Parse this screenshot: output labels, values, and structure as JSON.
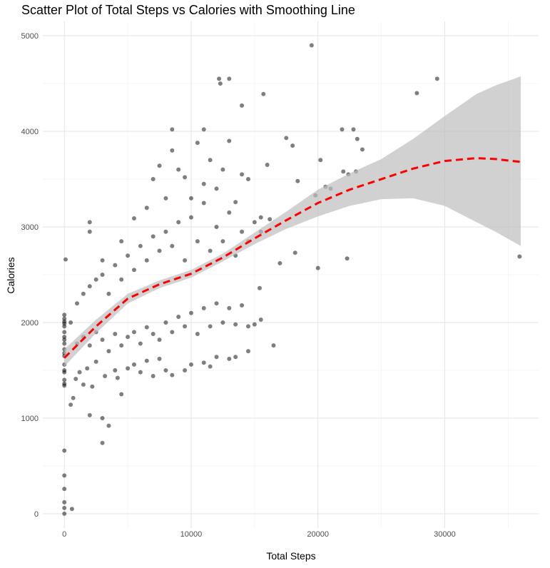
{
  "chart_data": {
    "type": "scatter",
    "title": "Scatter Plot of Total Steps vs Calories with Smoothing Line",
    "xlabel": "Total Steps",
    "ylabel": "Calories",
    "xlim": [
      -1700,
      37400
    ],
    "ylim": [
      -150,
      5150
    ],
    "xticks": [
      0,
      10000,
      20000,
      30000
    ],
    "yticks": [
      0,
      1000,
      2000,
      3000,
      4000,
      5000
    ],
    "grid": true,
    "point_color": "#000000",
    "point_opacity": 0.5,
    "smooth_color": "#ff0000",
    "band_color": "#bebebe",
    "smooth": {
      "x": [
        0,
        2500,
        5000,
        7500,
        10000,
        12500,
        15000,
        17500,
        20000,
        22500,
        25000,
        27500,
        30000,
        32500,
        34000,
        36000
      ],
      "y": [
        1630,
        1960,
        2250,
        2400,
        2510,
        2680,
        2880,
        3070,
        3250,
        3390,
        3500,
        3610,
        3690,
        3720,
        3710,
        3680
      ],
      "lower": [
        1540,
        1890,
        2200,
        2360,
        2470,
        2640,
        2820,
        2980,
        3110,
        3220,
        3290,
        3300,
        3220,
        3050,
        2950,
        2800
      ],
      "upper": [
        1720,
        2030,
        2300,
        2440,
        2550,
        2720,
        2940,
        3160,
        3390,
        3560,
        3710,
        3920,
        4160,
        4390,
        4480,
        4575
      ]
    },
    "points": [
      [
        0,
        0
      ],
      [
        0,
        60
      ],
      [
        0,
        120
      ],
      [
        0,
        260
      ],
      [
        0,
        400
      ],
      [
        0,
        660
      ],
      [
        600,
        50
      ],
      [
        0,
        1340
      ],
      [
        0,
        1360
      ],
      [
        0,
        1400
      ],
      [
        0,
        1480
      ],
      [
        0,
        1500
      ],
      [
        0,
        1560
      ],
      [
        0,
        1650
      ],
      [
        0,
        1680
      ],
      [
        0,
        1720
      ],
      [
        0,
        1780
      ],
      [
        0,
        1820
      ],
      [
        0,
        1850
      ],
      [
        0,
        1900
      ],
      [
        0,
        1960
      ],
      [
        0,
        1990
      ],
      [
        0,
        2010
      ],
      [
        0,
        2040
      ],
      [
        0,
        2080
      ],
      [
        100,
        2660
      ],
      [
        500,
        1140
      ],
      [
        700,
        1210
      ],
      [
        900,
        1410
      ],
      [
        1200,
        1480
      ],
      [
        1500,
        1350
      ],
      [
        1800,
        1520
      ],
      [
        2000,
        1030
      ],
      [
        2200,
        1330
      ],
      [
        2500,
        1590
      ],
      [
        3000,
        740
      ],
      [
        3000,
        1000
      ],
      [
        3200,
        1440
      ],
      [
        3500,
        920
      ],
      [
        4000,
        1500
      ],
      [
        4500,
        1250
      ],
      [
        4200,
        1420
      ],
      [
        5000,
        1520
      ],
      [
        5500,
        1560
      ],
      [
        6000,
        1480
      ],
      [
        6500,
        1600
      ],
      [
        7000,
        1440
      ],
      [
        7500,
        1620
      ],
      [
        8000,
        1500
      ],
      [
        8500,
        1450
      ],
      [
        9500,
        1500
      ],
      [
        10000,
        1560
      ],
      [
        11000,
        1580
      ],
      [
        11500,
        1540
      ],
      [
        12000,
        1640
      ],
      [
        13000,
        1620
      ],
      [
        13500,
        1640
      ],
      [
        14500,
        1700
      ],
      [
        1000,
        1780
      ],
      [
        1500,
        1850
      ],
      [
        2000,
        1760
      ],
      [
        2500,
        1900
      ],
      [
        3000,
        1820
      ],
      [
        3500,
        1700
      ],
      [
        4000,
        1880
      ],
      [
        4500,
        1760
      ],
      [
        5000,
        1850
      ],
      [
        5500,
        1900
      ],
      [
        6000,
        1780
      ],
      [
        6500,
        1950
      ],
      [
        7000,
        1880
      ],
      [
        7500,
        1820
      ],
      [
        8000,
        2000
      ],
      [
        8500,
        1900
      ],
      [
        9000,
        2060
      ],
      [
        9500,
        1960
      ],
      [
        10000,
        2100
      ],
      [
        10500,
        1880
      ],
      [
        11000,
        2150
      ],
      [
        11500,
        1960
      ],
      [
        12000,
        2200
      ],
      [
        12500,
        2000
      ],
      [
        13000,
        2150
      ],
      [
        13500,
        1980
      ],
      [
        14000,
        2180
      ],
      [
        14500,
        1960
      ],
      [
        15000,
        1980
      ],
      [
        15500,
        2030
      ],
      [
        500,
        2000
      ],
      [
        1000,
        2200
      ],
      [
        1500,
        2300
      ],
      [
        2000,
        2380
      ],
      [
        2500,
        2450
      ],
      [
        3000,
        2500
      ],
      [
        3500,
        2300
      ],
      [
        4000,
        2600
      ],
      [
        4500,
        2450
      ],
      [
        5000,
        2700
      ],
      [
        5500,
        2550
      ],
      [
        6000,
        2800
      ],
      [
        6500,
        2650
      ],
      [
        7000,
        2900
      ],
      [
        7500,
        2750
      ],
      [
        8000,
        2950
      ],
      [
        8500,
        2800
      ],
      [
        9000,
        3050
      ],
      [
        9500,
        2650
      ],
      [
        10000,
        3100
      ],
      [
        10500,
        2850
      ],
      [
        11000,
        3250
      ],
      [
        11500,
        2750
      ],
      [
        12000,
        3000
      ],
      [
        12500,
        2850
      ],
      [
        13000,
        3150
      ],
      [
        13500,
        2700
      ],
      [
        14000,
        2950
      ],
      [
        14500,
        2850
      ],
      [
        15000,
        3050
      ],
      [
        15500,
        2950
      ],
      [
        2000,
        2950
      ],
      [
        2000,
        3050
      ],
      [
        3000,
        2650
      ],
      [
        4500,
        2850
      ],
      [
        5500,
        3090
      ],
      [
        6500,
        3200
      ],
      [
        7000,
        3500
      ],
      [
        7500,
        3640
      ],
      [
        8000,
        3300
      ],
      [
        8500,
        3800
      ],
      [
        9000,
        3600
      ],
      [
        9500,
        3520
      ],
      [
        10000,
        3300
      ],
      [
        10500,
        3880
      ],
      [
        11000,
        3450
      ],
      [
        11500,
        3700
      ],
      [
        12000,
        3400
      ],
      [
        12500,
        3600
      ],
      [
        13000,
        3900
      ],
      [
        13500,
        3260
      ],
      [
        14000,
        3550
      ],
      [
        14500,
        3500
      ],
      [
        8500,
        4020
      ],
      [
        11000,
        4020
      ],
      [
        12200,
        4550
      ],
      [
        12300,
        4500
      ],
      [
        13000,
        4550
      ],
      [
        14000,
        4270
      ],
      [
        15700,
        4390
      ],
      [
        16000,
        3650
      ],
      [
        16200,
        3080
      ],
      [
        15500,
        3100
      ],
      [
        17500,
        3930
      ],
      [
        18000,
        3850
      ],
      [
        18400,
        3480
      ],
      [
        19800,
        3330
      ],
      [
        20200,
        3700
      ],
      [
        20600,
        3420
      ],
      [
        21000,
        3400
      ],
      [
        22000,
        3580
      ],
      [
        22400,
        3550
      ],
      [
        23000,
        3580
      ],
      [
        21900,
        4020
      ],
      [
        22800,
        4020
      ],
      [
        23100,
        3920
      ],
      [
        23500,
        3810
      ],
      [
        19500,
        4900
      ],
      [
        27800,
        4400
      ],
      [
        29400,
        4550
      ],
      [
        35900,
        2690
      ],
      [
        22300,
        2670
      ],
      [
        20000,
        2570
      ],
      [
        18200,
        2730
      ],
      [
        17000,
        2620
      ],
      [
        16500,
        1760
      ],
      [
        15400,
        2360
      ]
    ]
  }
}
